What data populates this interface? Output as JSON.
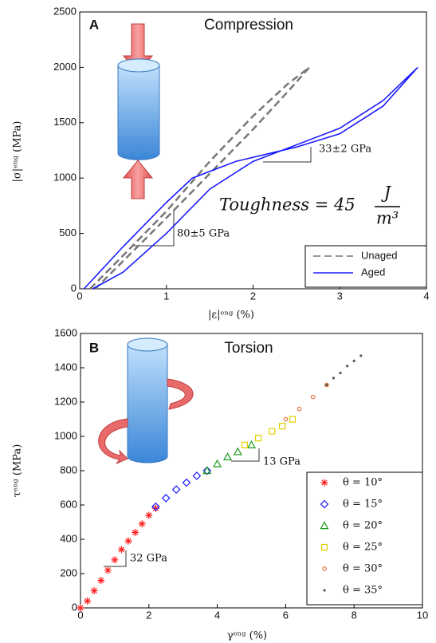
{
  "chart_data": [
    {
      "type": "line",
      "panel_label": "A",
      "title": "Compression",
      "x_label": "|ε|ᵉⁿᵍ (%)",
      "y_label": "|σ|ᵉⁿᵍ (MPa)",
      "xlim": [
        0,
        4
      ],
      "xticks": [
        0,
        1,
        2,
        3,
        4
      ],
      "ylim": [
        0,
        2500
      ],
      "yticks": [
        0,
        500,
        1000,
        1500,
        2000,
        2500
      ],
      "grid": false,
      "legend": "lower right",
      "annotations": [
        "33±2 GPa",
        "80±5 GPa",
        "Toughness = 45",
        "J",
        "m³"
      ],
      "series": [
        {
          "name": "Unaged",
          "color": "#777777",
          "linestyle": "dashed",
          "x": [
            0.12,
            0.5,
            1.0,
            1.5,
            2.0,
            2.4,
            2.65,
            2.4,
            2.0,
            1.5,
            1.0,
            0.5,
            0.18
          ],
          "values": [
            0,
            300,
            700,
            1150,
            1560,
            1850,
            2000,
            1780,
            1440,
            1040,
            640,
            250,
            0
          ]
        },
        {
          "name": "Aged",
          "color": "#1a1aff",
          "linestyle": "solid",
          "x": [
            0.05,
            0.5,
            1.0,
            1.3,
            1.8,
            2.5,
            3.0,
            3.5,
            3.9,
            3.5,
            3.0,
            2.5,
            2.0,
            1.5,
            1.0,
            0.5,
            0.15
          ],
          "values": [
            0,
            380,
            780,
            1000,
            1150,
            1280,
            1400,
            1650,
            2000,
            1700,
            1450,
            1300,
            1150,
            900,
            500,
            150,
            0
          ]
        }
      ]
    },
    {
      "type": "scatter",
      "panel_label": "B",
      "title": "Torsion",
      "x_label": "γᵉⁿᵍ (%)",
      "y_label": "τᵉⁿᵍ (MPa)",
      "xlim": [
        0,
        10
      ],
      "xticks": [
        0,
        2,
        4,
        6,
        8,
        10
      ],
      "ylim": [
        0,
        1600
      ],
      "yticks": [
        0,
        200,
        400,
        600,
        800,
        1000,
        1200,
        1400,
        1600
      ],
      "grid": false,
      "legend": "lower right",
      "annotations": [
        "13 GPa",
        "32 GPa"
      ],
      "series": [
        {
          "name": "θ = 10°",
          "color": "#ff2020",
          "marker": "asterisk",
          "x": [
            0,
            0.2,
            0.4,
            0.6,
            0.8,
            1.0,
            1.2,
            1.4,
            1.6,
            1.8,
            2.0,
            2.2
          ],
          "values": [
            0,
            40,
            100,
            160,
            220,
            280,
            340,
            390,
            440,
            490,
            540,
            580
          ]
        },
        {
          "name": "θ = 15°",
          "color": "#1a1aff",
          "marker": "diamond",
          "x": [
            2.2,
            2.5,
            2.8,
            3.1,
            3.4,
            3.7
          ],
          "values": [
            590,
            640,
            690,
            730,
            770,
            800
          ]
        },
        {
          "name": "θ = 20°",
          "color": "#1a9a1a",
          "marker": "triangle",
          "x": [
            3.7,
            4.0,
            4.3,
            4.6,
            5.0
          ],
          "values": [
            800,
            840,
            880,
            910,
            950
          ]
        },
        {
          "name": "θ = 25°",
          "color": "#e0d000",
          "marker": "square",
          "x": [
            4.8,
            5.2,
            5.6,
            5.9,
            6.2
          ],
          "values": [
            950,
            990,
            1030,
            1060,
            1100
          ]
        },
        {
          "name": "θ = 30°",
          "color": "#e06020",
          "marker": "circle",
          "x": [
            6.0,
            6.4,
            6.8,
            7.2
          ],
          "values": [
            1100,
            1160,
            1230,
            1300
          ]
        },
        {
          "name": "θ = 35°",
          "color": "#555555",
          "marker": "dot",
          "x": [
            7.2,
            7.4,
            7.6,
            7.8,
            8.0,
            8.2
          ],
          "values": [
            1300,
            1340,
            1370,
            1410,
            1440,
            1470
          ]
        }
      ]
    }
  ]
}
